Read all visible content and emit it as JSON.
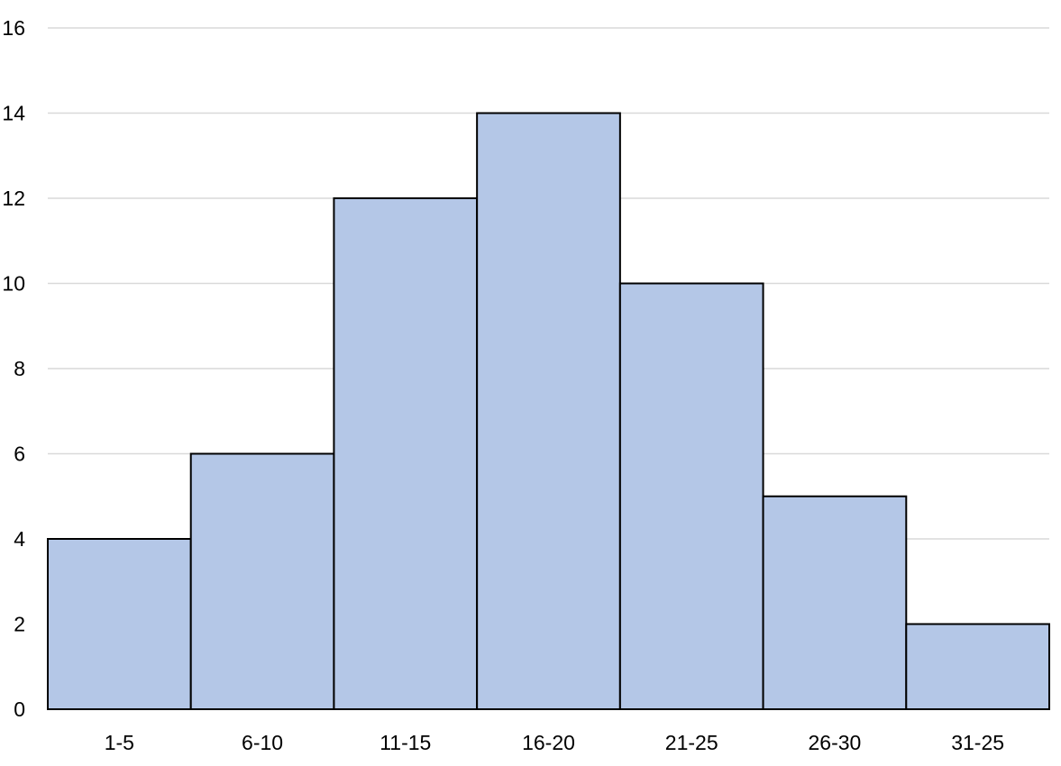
{
  "chart_data": {
    "type": "bar",
    "title": "",
    "xlabel": "",
    "ylabel": "",
    "categories": [
      "1-5",
      "6-10",
      "11-15",
      "16-20",
      "21-25",
      "26-30",
      "31-25"
    ],
    "values": [
      4,
      6,
      12,
      14,
      10,
      5,
      2
    ],
    "ylim": [
      0,
      16
    ],
    "yticks": [
      0,
      2,
      4,
      6,
      8,
      10,
      12,
      14,
      16
    ],
    "grid": true,
    "legend": "none",
    "colors": {
      "bar_fill": "#b4c7e7",
      "bar_stroke": "#000000",
      "grid": "#d9d9d9",
      "text": "#000000"
    }
  }
}
